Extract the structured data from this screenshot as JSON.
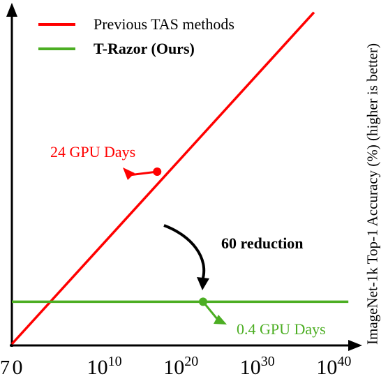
{
  "chart_data": {
    "type": "line",
    "xlabel": "",
    "ylabel": "ImageNet-1k Top-1 Accuracy (%) (higher is better)",
    "x_tick_labels": [
      {
        "value": 0,
        "base": "0",
        "exp": ""
      },
      {
        "value": 10,
        "base": "10",
        "exp": "10"
      },
      {
        "value": 20,
        "base": "10",
        "exp": "20"
      },
      {
        "value": 30,
        "base": "10",
        "exp": "30"
      },
      {
        "value": 40,
        "base": "10",
        "exp": "40"
      }
    ],
    "y_tick_label_fragment": "7",
    "legend_position": "top-left",
    "series": [
      {
        "name": "Previous TAS methods",
        "color": "#ff0000",
        "x": [
          0,
          39.5
        ],
        "y": [
          0,
          10.2
        ]
      },
      {
        "name": "T-Razor (Ours)",
        "color": "#4cae23",
        "x": [
          0,
          44
        ],
        "y": [
          1.3,
          1.3
        ]
      }
    ],
    "markers": [
      {
        "series": "Previous TAS methods",
        "x": 19,
        "y": 5.3,
        "label": "24 GPU Days",
        "color": "#ff0000"
      },
      {
        "series": "T-Razor (Ours)",
        "x": 25,
        "y": 1.3,
        "label": "0.4 GPU Days",
        "color": "#4cae23"
      }
    ],
    "annotation": "60 reduction"
  }
}
